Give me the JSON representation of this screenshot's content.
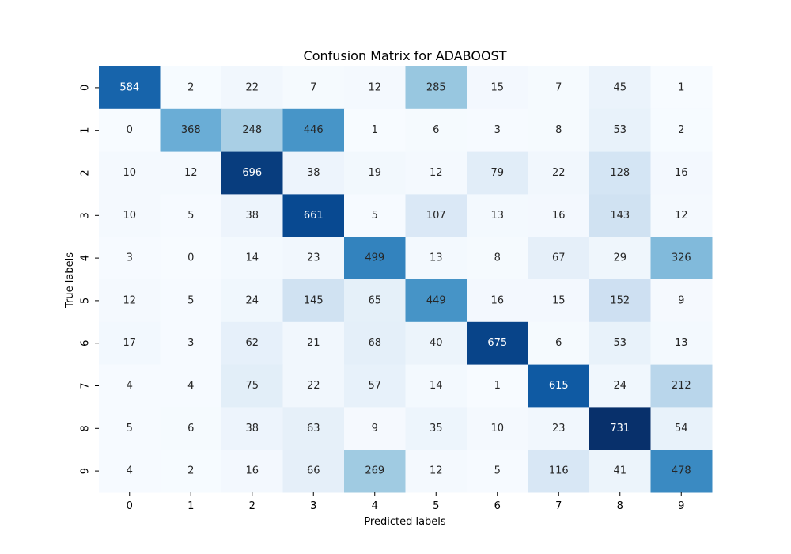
{
  "chart_data": {
    "type": "heatmap",
    "title": "Confusion Matrix for ADABOOST",
    "xlabel": "Predicted labels",
    "ylabel": "True labels",
    "x_categories": [
      "0",
      "1",
      "2",
      "3",
      "4",
      "5",
      "6",
      "7",
      "8",
      "9"
    ],
    "y_categories": [
      "0",
      "1",
      "2",
      "3",
      "4",
      "5",
      "6",
      "7",
      "8",
      "9"
    ],
    "colormap": "Blues",
    "color_low": "#f7fbff",
    "color_high": "#08306b",
    "values": [
      [
        584,
        2,
        22,
        7,
        12,
        285,
        15,
        7,
        45,
        1
      ],
      [
        0,
        368,
        248,
        446,
        1,
        6,
        3,
        8,
        53,
        2
      ],
      [
        10,
        12,
        696,
        38,
        19,
        12,
        79,
        22,
        128,
        16
      ],
      [
        10,
        5,
        38,
        661,
        5,
        107,
        13,
        16,
        143,
        12
      ],
      [
        3,
        0,
        14,
        23,
        499,
        13,
        8,
        67,
        29,
        326
      ],
      [
        12,
        5,
        24,
        145,
        65,
        449,
        16,
        15,
        152,
        9
      ],
      [
        17,
        3,
        62,
        21,
        68,
        40,
        675,
        6,
        53,
        13
      ],
      [
        4,
        4,
        75,
        22,
        57,
        14,
        1,
        615,
        24,
        212
      ],
      [
        5,
        6,
        38,
        63,
        9,
        35,
        10,
        23,
        731,
        54
      ],
      [
        4,
        2,
        16,
        66,
        269,
        12,
        5,
        116,
        41,
        478
      ]
    ]
  }
}
